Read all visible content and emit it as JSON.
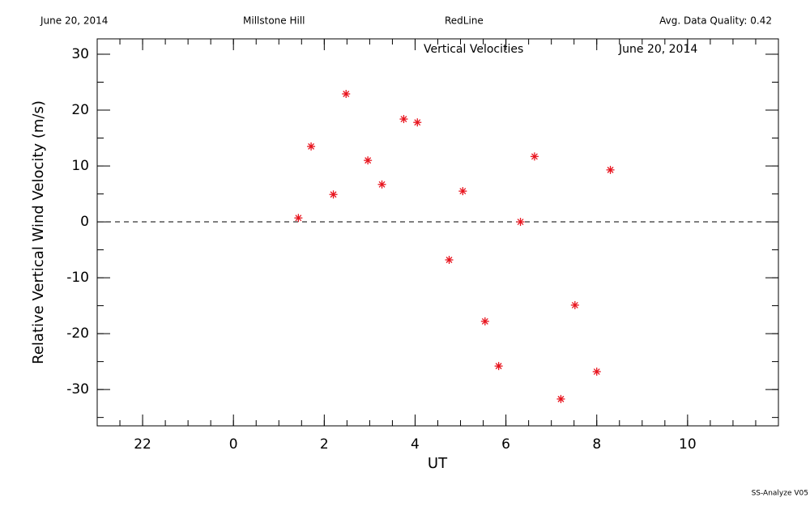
{
  "header": {
    "left": "June 20, 2014",
    "site": "Millstone Hill",
    "instrument": "RedLine",
    "quality": "Avg. Data Quality: 0.42"
  },
  "footer": "SS-Analyze V05",
  "chart_data": {
    "type": "scatter",
    "title": "Vertical Velocities",
    "subtitle": "June 20, 2014",
    "x_label": "UT",
    "y_label": "Relative Vertical Wind Velocity (m/s)",
    "x": [
      1.43,
      1.71,
      2.2,
      2.48,
      2.96,
      3.27,
      3.75,
      4.05,
      4.75,
      5.05,
      5.54,
      5.84,
      6.32,
      6.63,
      7.21,
      7.52,
      8.0,
      8.3
    ],
    "values": [
      0.7,
      13.5,
      4.9,
      22.9,
      11.0,
      6.7,
      18.4,
      17.8,
      -6.8,
      5.5,
      -17.8,
      -25.8,
      0,
      11.7,
      -31.7,
      -14.9,
      -26.8,
      9.3
    ],
    "color": "#e8141e",
    "xlim": [
      -3,
      12
    ],
    "xticks": [
      {
        "value": -2,
        "label": "22"
      },
      0,
      2,
      4,
      6,
      8,
      10
    ],
    "ylim": [
      -36.5,
      32.75
    ],
    "yticks": [
      -30,
      -20,
      -10,
      0,
      10,
      20,
      30
    ],
    "hline": 0
  }
}
